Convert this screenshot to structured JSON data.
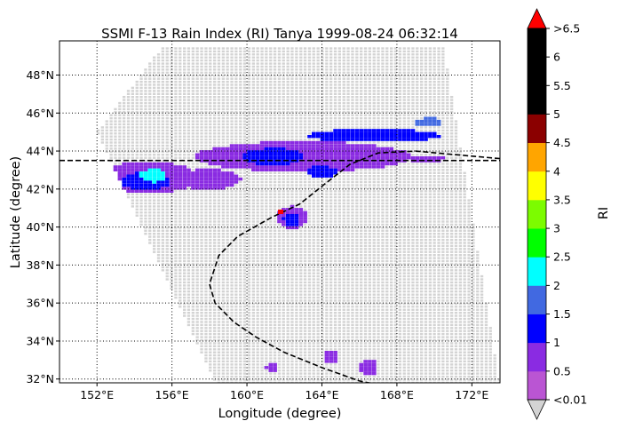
{
  "chart_data": {
    "type": "heatmap",
    "title": "SSMI F-13 Rain Index (RI) Tanya 1999-08-24 06:32:14",
    "xlabel": "Longitude (degree)",
    "ylabel": "Latitude (degree)",
    "xlim": [
      150,
      173.5
    ],
    "ylim": [
      31.8,
      49.8
    ],
    "grid": true,
    "x_ticks": [
      "152°E",
      "156°E",
      "160°E",
      "164°E",
      "168°E",
      "172°E"
    ],
    "x_tick_values": [
      152,
      156,
      160,
      164,
      168,
      172
    ],
    "y_ticks": [
      "32°N",
      "34°N",
      "36°N",
      "38°N",
      "40°N",
      "42°N",
      "44°N",
      "46°N",
      "48°N"
    ],
    "y_tick_values": [
      32,
      34,
      36,
      38,
      40,
      42,
      44,
      46,
      48
    ],
    "colorbar": {
      "label": "RI",
      "tick_labels": [
        "<0.01",
        "0.5",
        "1",
        "1.5",
        "2",
        "2.5",
        "3",
        "3.5",
        "4",
        "4.5",
        "5",
        "5.5",
        "6",
        ">6.5"
      ],
      "colors": [
        "#ba55d3",
        "#8a2be2",
        "#0000ff",
        "#4169e1",
        "#00ffff",
        "#00ff00",
        "#7cfc00",
        "#ffff00",
        "#ffa500",
        "#8b0000",
        "#000000",
        "#000000",
        "#000000"
      ],
      "under_color": "#d3d3d3",
      "over_color": "#ff0000"
    },
    "swath_colors": {
      "no_rain": "#d3d3d3"
    },
    "swath_corners": [
      [
        152,
        45
      ],
      [
        155.5,
        49.5
      ],
      [
        170.5,
        49.5
      ],
      [
        173.5,
        31.8
      ],
      [
        158.3,
        31.8
      ]
    ],
    "rain_regions": [
      {
        "lon": 154.8,
        "lat": 42.6,
        "rx": 2.6,
        "ry": 0.85,
        "ri": 0.6
      },
      {
        "lon": 154.6,
        "lat": 42.4,
        "rx": 1.3,
        "ry": 0.5,
        "ri": 1.1
      },
      {
        "lon": 155.0,
        "lat": 42.7,
        "rx": 0.7,
        "ry": 0.35,
        "ri": 2.2
      },
      {
        "lon": 163.0,
        "lat": 43.7,
        "rx": 5.8,
        "ry": 0.8,
        "ri": 0.6
      },
      {
        "lon": 161.4,
        "lat": 43.7,
        "rx": 1.6,
        "ry": 0.45,
        "ri": 1.2
      },
      {
        "lon": 166.8,
        "lat": 44.8,
        "rx": 3.5,
        "ry": 0.35,
        "ri": 1.1
      },
      {
        "lon": 169.7,
        "lat": 45.5,
        "rx": 0.7,
        "ry": 0.25,
        "ri": 1.6
      },
      {
        "lon": 158.0,
        "lat": 42.5,
        "rx": 1.7,
        "ry": 0.55,
        "ri": 0.6
      },
      {
        "lon": 164.0,
        "lat": 42.9,
        "rx": 0.9,
        "ry": 0.3,
        "ri": 1.1
      },
      {
        "lon": 162.4,
        "lat": 40.5,
        "rx": 0.8,
        "ry": 0.6,
        "ri": 0.6
      },
      {
        "lon": 162.4,
        "lat": 40.4,
        "rx": 0.45,
        "ry": 0.35,
        "ri": 1.1
      },
      {
        "lon": 164.5,
        "lat": 33.2,
        "rx": 0.45,
        "ry": 0.35,
        "ri": 0.6
      },
      {
        "lon": 166.5,
        "lat": 32.6,
        "rx": 0.45,
        "ry": 0.45,
        "ri": 0.6
      },
      {
        "lon": 161.3,
        "lat": 32.6,
        "rx": 0.3,
        "ry": 0.25,
        "ri": 0.6
      },
      {
        "lon": 169.5,
        "lat": 43.6,
        "rx": 1.0,
        "ry": 0.2,
        "ri": 0.6
      }
    ],
    "max_point": {
      "lon": 161.8,
      "lat": 40.8,
      "ri": 6.6
    },
    "dashed_lines": [
      {
        "name": "lat-43.5",
        "points": [
          [
            150,
            43.5
          ],
          [
            173.5,
            43.5
          ]
        ]
      },
      {
        "name": "boundary",
        "points": [
          [
            173.5,
            43.6
          ],
          [
            169,
            44.0
          ],
          [
            167,
            43.9
          ],
          [
            165.5,
            43.3
          ],
          [
            164.2,
            42.3
          ],
          [
            162.8,
            41.2
          ],
          [
            161.3,
            40.5
          ],
          [
            159.5,
            39.5
          ],
          [
            158.5,
            38.5
          ],
          [
            158.0,
            37.0
          ],
          [
            158.3,
            36.0
          ],
          [
            159.3,
            35.0
          ],
          [
            160.5,
            34.2
          ],
          [
            162.0,
            33.4
          ],
          [
            164.0,
            32.6
          ],
          [
            166.0,
            31.9
          ],
          [
            167.0,
            31.7
          ]
        ]
      }
    ]
  }
}
